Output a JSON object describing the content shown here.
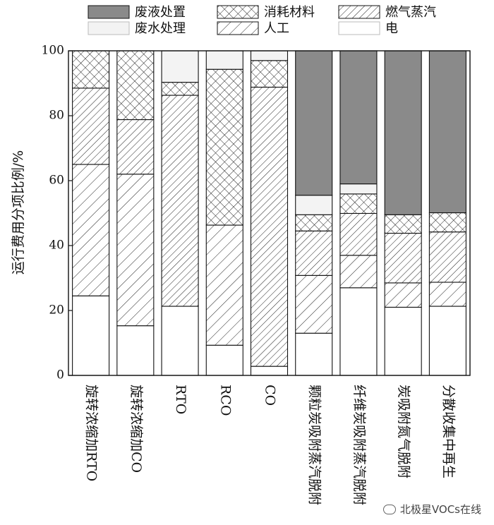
{
  "chart_data": {
    "type": "bar",
    "stacked": true,
    "title": "",
    "ylabel": "运行费用分项比例/%",
    "xlabel": "",
    "ylim": [
      0,
      100
    ],
    "yticks": [
      0,
      20,
      40,
      60,
      80,
      100
    ],
    "categories": [
      "旋转浓缩加RTO",
      "旋转浓缩加CO",
      "RTO",
      "RCO",
      "CO",
      "颗粒炭吸附蒸汽脱附",
      "纤维炭吸附蒸汽脱附",
      "炭吸附氮气脱附",
      "分散收集中再生"
    ],
    "series": [
      {
        "name": "电",
        "pattern": "white",
        "values": [
          24.5,
          15.3,
          21.3,
          9.3,
          2.8,
          13.0,
          27.0,
          21.0,
          21.3
        ]
      },
      {
        "name": "人工",
        "pattern": "hatch-wide",
        "values": [
          40.5,
          46.7,
          0,
          37.0,
          0,
          17.8,
          10.0,
          7.5,
          7.4
        ]
      },
      {
        "name": "燃气蒸汽",
        "pattern": "hatch-dense",
        "values": [
          23.5,
          16.8,
          65.0,
          0,
          86.0,
          13.7,
          12.9,
          15.3,
          15.5
        ]
      },
      {
        "name": "消耗材料",
        "pattern": "crosshatch",
        "values": [
          11.5,
          21.2,
          4.0,
          48.0,
          8.2,
          5.0,
          6.0,
          5.7,
          5.9
        ]
      },
      {
        "name": "废水处理",
        "pattern": "light",
        "values": [
          0,
          0,
          9.7,
          5.7,
          3.0,
          6.0,
          3.1,
          0,
          0
        ]
      },
      {
        "name": "废液处置",
        "pattern": "dark",
        "values": [
          0,
          0,
          0,
          0,
          0,
          44.5,
          41.0,
          50.5,
          49.9
        ]
      }
    ],
    "legend": {
      "placement": "top",
      "entries": [
        {
          "name": "废液处置",
          "pattern": "dark"
        },
        {
          "name": "消耗材料",
          "pattern": "crosshatch"
        },
        {
          "name": "燃气蒸汽",
          "pattern": "hatch-dense"
        },
        {
          "name": "废水处理",
          "pattern": "light"
        },
        {
          "name": "人工",
          "pattern": "hatch-wide"
        },
        {
          "name": "电",
          "pattern": "white"
        }
      ]
    },
    "grid": false,
    "colors": {
      "dark": "#8a8a8a",
      "light": "#f3f3f3",
      "line": "#111111"
    }
  },
  "watermark": "北极星VOCs在线"
}
